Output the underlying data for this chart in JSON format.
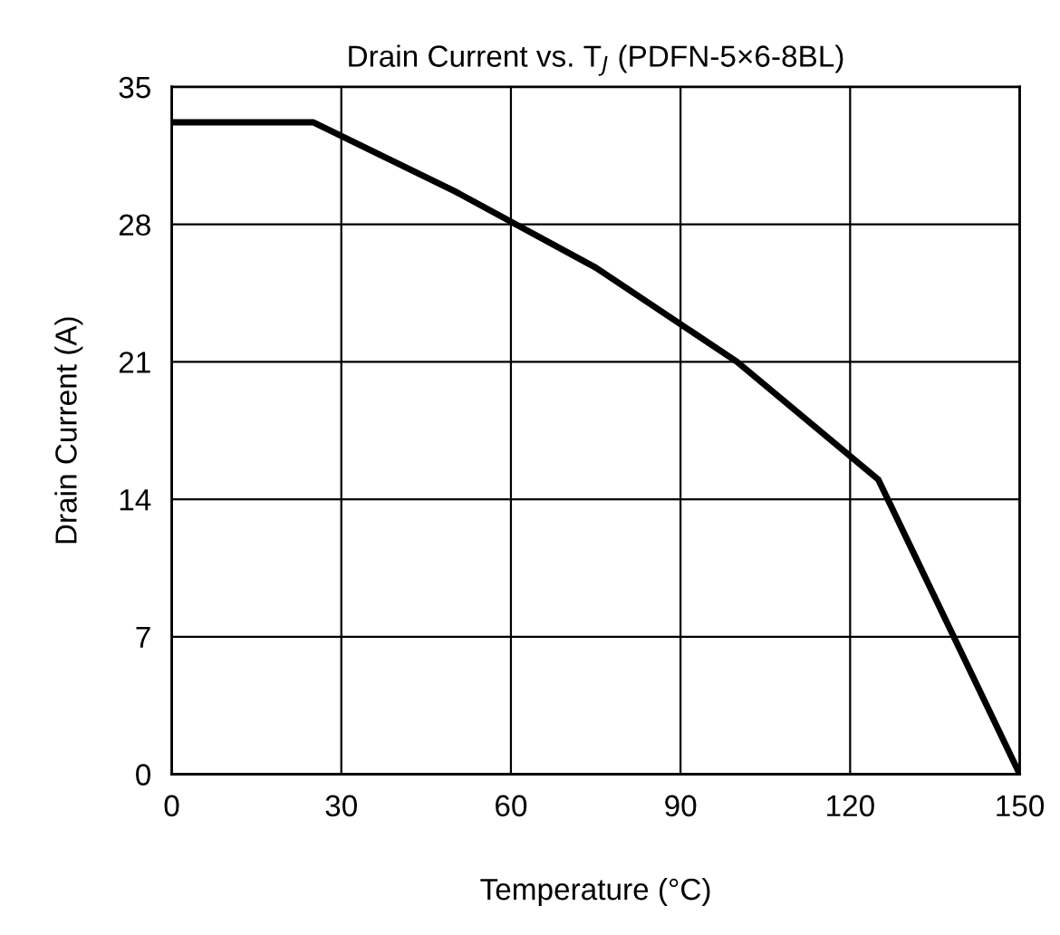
{
  "chart_data": {
    "type": "line",
    "title": "Drain Current vs. T$_{J}$ (PDFN-5×6-8BL)",
    "xlabel": "Temperature (°C)",
    "ylabel": "Drain Current (A)",
    "x": [
      0,
      25,
      50,
      75,
      100,
      125,
      150
    ],
    "series": [
      {
        "color": "#000000",
        "values": [
          33.2,
          33.2,
          29.7,
          25.8,
          21,
          15,
          0
        ]
      }
    ],
    "xlim": [
      0,
      150
    ],
    "xticks": [
      0,
      30,
      60,
      90,
      120,
      150
    ],
    "ylim": [
      0,
      35
    ],
    "yticks": [
      0,
      7,
      14,
      21,
      28,
      35
    ],
    "grid": true,
    "marker": "none",
    "line_style": "solid",
    "legend": false
  }
}
